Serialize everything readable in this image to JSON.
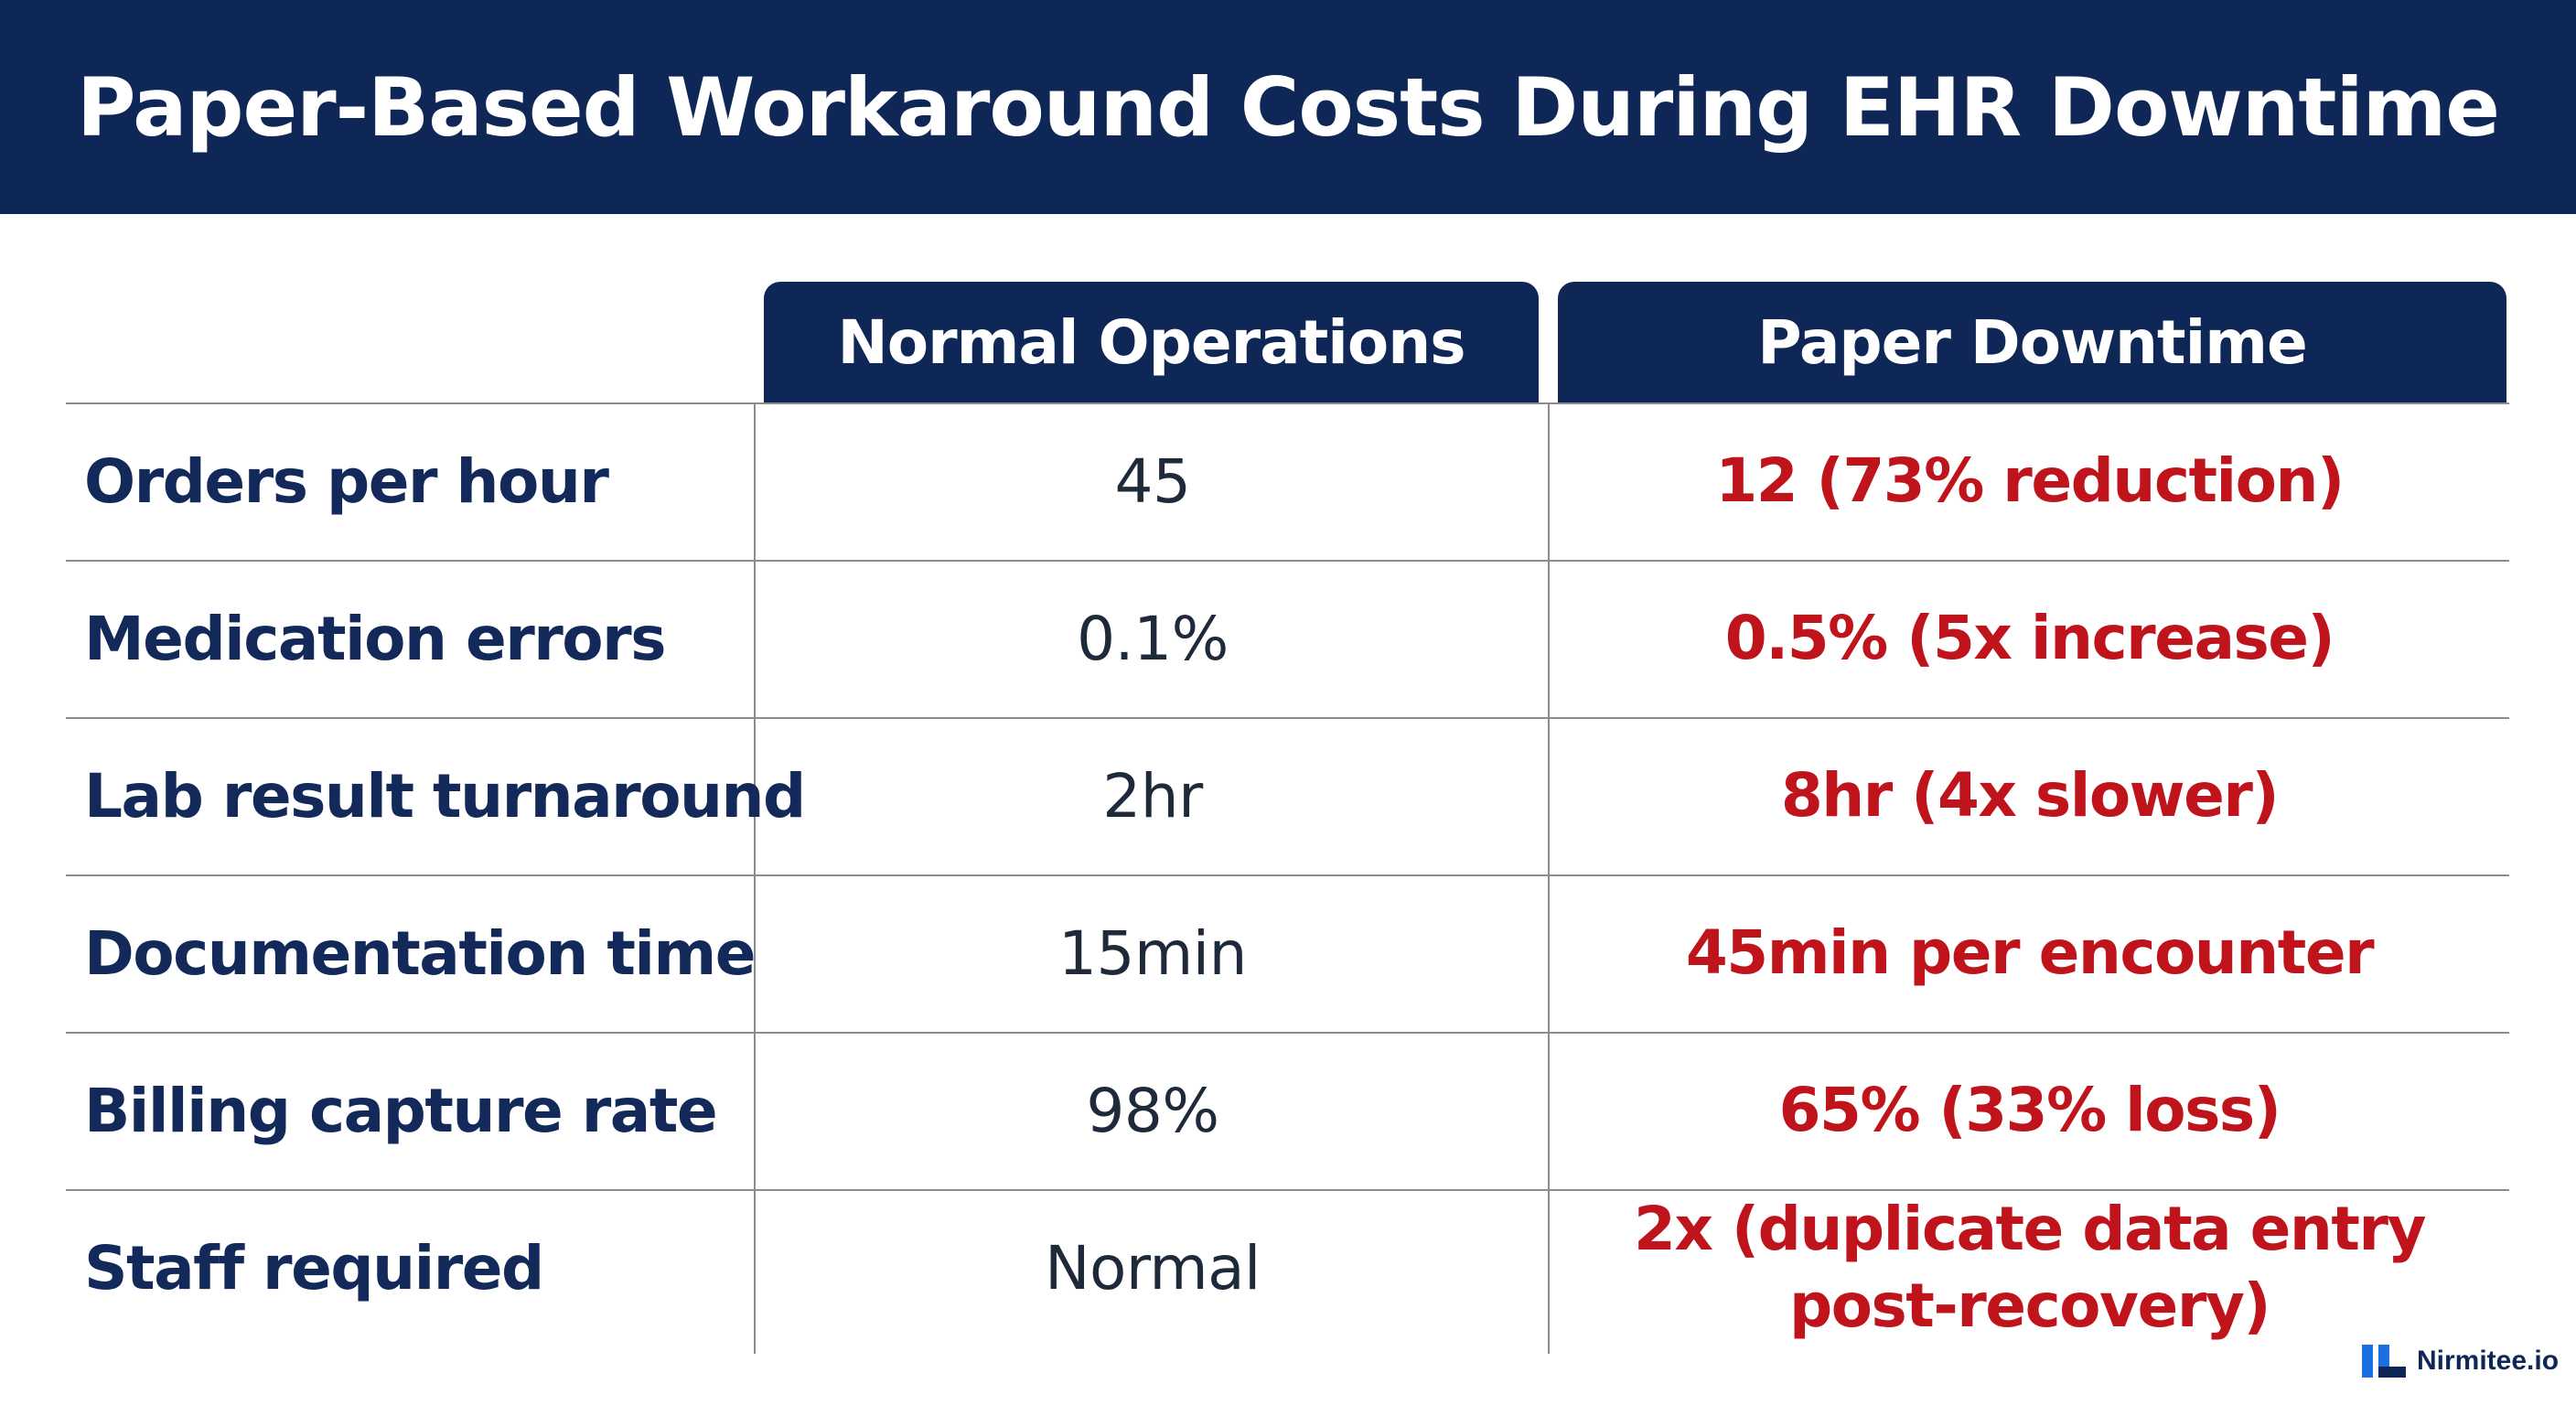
{
  "title": "Paper-Based Workaround Costs During EHR Downtime",
  "columns": {
    "normal": "Normal Operations",
    "paper": "Paper Downtime"
  },
  "rows": [
    {
      "metric": "Orders per hour",
      "normal": "45",
      "paper": [
        "12 (73% reduction)"
      ]
    },
    {
      "metric": "Medication errors",
      "normal": "0.1%",
      "paper": [
        "0.5% (5x increase)"
      ]
    },
    {
      "metric": "Lab result turnaround",
      "normal": "2hr",
      "paper": [
        "8hr (4x slower)"
      ]
    },
    {
      "metric": "Documentation time",
      "normal": "15min",
      "paper": [
        "45min per encounter"
      ]
    },
    {
      "metric": "Billing capture rate",
      "normal": "98%",
      "paper": [
        "65% (33% loss)"
      ]
    },
    {
      "metric": "Staff required",
      "normal": "Normal",
      "paper": [
        "2x (duplicate data entry",
        "post-recovery)"
      ]
    }
  ],
  "brand": {
    "name": "Nirmitee.io",
    "icon": "nirmitee-logo-icon"
  },
  "colors": {
    "navy": "#0f2756",
    "highlight_red": "#c0141c"
  }
}
